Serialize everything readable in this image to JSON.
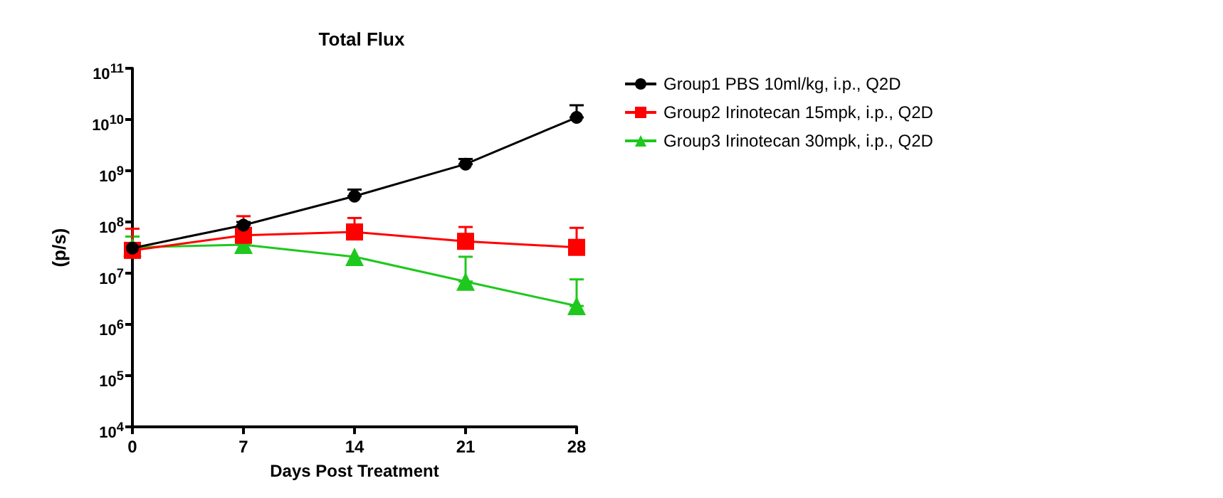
{
  "chart_data": {
    "type": "line",
    "title": "Total Flux",
    "xlabel": "Days Post Treatment",
    "ylabel": "(p/s)",
    "x": [
      0,
      7,
      14,
      21,
      28
    ],
    "xlim": [
      0,
      28
    ],
    "xticks": [
      0,
      7,
      14,
      21,
      28
    ],
    "log": "y",
    "ylim": [
      10000,
      100000000000
    ],
    "yticks": [
      {
        "value": 10000,
        "label": "10$^{4}$"
      },
      {
        "value": 100000,
        "label": "10$^{5}$"
      },
      {
        "value": 1000000,
        "label": "10$^{6}$"
      },
      {
        "value": 10000000,
        "label": "10$^{7}$"
      },
      {
        "value": 100000000,
        "label": "10$^{8}$"
      },
      {
        "value": 1000000000,
        "label": "10$^{9}$"
      },
      {
        "value": 10000000000,
        "label": "10$^{10}$"
      },
      {
        "value": 100000000000,
        "label": "10$^{11}$"
      }
    ],
    "grid": false,
    "legend": "top right",
    "series": [
      {
        "name": "Group1 PBS 10ml/kg, i.p., Q2D",
        "color": "#000000",
        "marker": "circle",
        "values": [
          31000000,
          87000000,
          320000000,
          1350000000,
          11000000000
        ],
        "errors": [
          [
            31000000,
            36000000
          ],
          [
            87000000,
            100000000
          ],
          [
            320000000,
            430000000
          ],
          [
            1350000000,
            1700000000
          ],
          [
            11000000000,
            19000000000
          ]
        ]
      },
      {
        "name": "Group2 Irinotecan 15mpk, i.p., Q2D",
        "color": "#ff0000",
        "marker": "square",
        "values": [
          28000000,
          55000000,
          64000000,
          42000000,
          32000000
        ],
        "errors": [
          [
            28000000,
            74000000
          ],
          [
            55000000,
            130000000
          ],
          [
            64000000,
            120000000
          ],
          [
            42000000,
            80000000
          ],
          [
            32000000,
            77000000
          ]
        ]
      },
      {
        "name": "Group3 Irinotecan 30mpk, i.p., Q2D",
        "color": "#1ec81e",
        "marker": "triangle",
        "values": [
          32000000,
          36000000,
          21000000,
          6900000,
          2300000
        ],
        "errors": [
          [
            32000000,
            52000000
          ],
          [
            36000000,
            40000000
          ],
          null,
          [
            6900000,
            21000000
          ],
          [
            2300000,
            7600000
          ]
        ]
      }
    ]
  }
}
